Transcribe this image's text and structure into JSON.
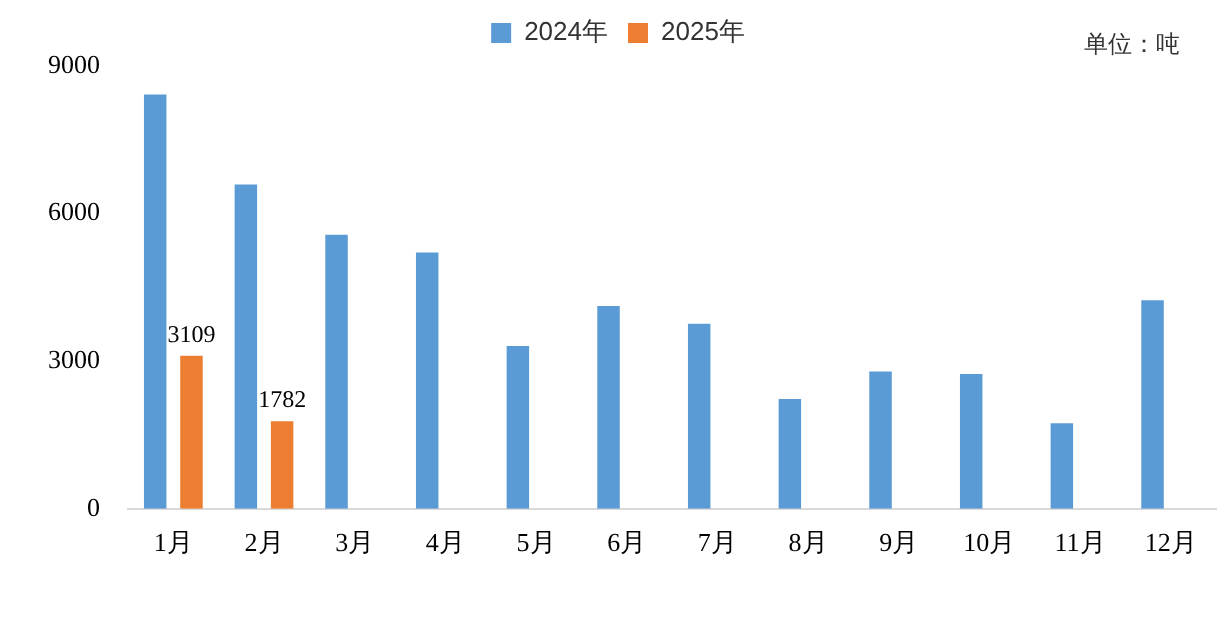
{
  "chart_data": {
    "type": "bar",
    "categories": [
      "1月",
      "2月",
      "3月",
      "4月",
      "5月",
      "6月",
      "7月",
      "8月",
      "9月",
      "10月",
      "11月",
      "12月"
    ],
    "series": [
      {
        "name": "2024年",
        "color": "#5b9bd5",
        "values": [
          8420,
          6590,
          5570,
          5210,
          3310,
          4120,
          3760,
          2230,
          2790,
          2740,
          1740,
          4240
        ]
      },
      {
        "name": "2025年",
        "color": "#ed7d31",
        "values": [
          3109,
          1782,
          null,
          null,
          null,
          null,
          null,
          null,
          null,
          null,
          null,
          null
        ],
        "value_labels": [
          "3109",
          "1782",
          null,
          null,
          null,
          null,
          null,
          null,
          null,
          null,
          null,
          null
        ]
      }
    ],
    "ylim": [
      0,
      9000
    ],
    "yticks": [
      0,
      3000,
      6000,
      9000
    ],
    "grid": false,
    "legend": "top",
    "annotations": [
      "单位：吨"
    ]
  }
}
